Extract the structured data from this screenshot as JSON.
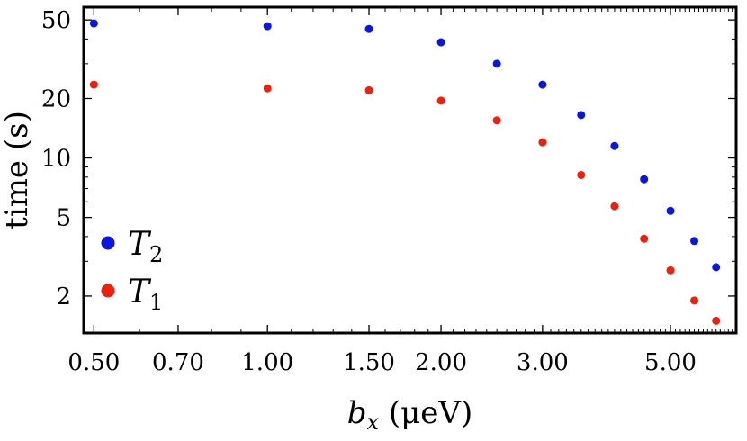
{
  "chart_data": {
    "type": "scatter",
    "xlabel": "b_x (μeV)",
    "ylabel": "time (s)",
    "xscale": "log",
    "yscale": "log",
    "xlim": [
      0.48,
      6.5
    ],
    "ylim": [
      1.3,
      58
    ],
    "x_tick_values": [
      0.5,
      0.7,
      1.0,
      1.5,
      2.0,
      3.0,
      5.0
    ],
    "x_tick_labels": [
      "0.50",
      "0.70",
      "1.00",
      "1.50",
      "2.00",
      "3.00",
      "5.00"
    ],
    "y_tick_values": [
      2,
      5,
      10,
      20,
      50
    ],
    "y_tick_labels": [
      "2",
      "5",
      "10",
      "20",
      "50"
    ],
    "legend_position": "bottom-left",
    "series": [
      {
        "name": "T_2",
        "label_main": "T",
        "label_sub": "2",
        "color": "#0a14e6",
        "points": [
          {
            "x": 0.5,
            "y": 48
          },
          {
            "x": 1.0,
            "y": 46.5
          },
          {
            "x": 1.5,
            "y": 45
          },
          {
            "x": 2.0,
            "y": 38.5
          },
          {
            "x": 2.5,
            "y": 30
          },
          {
            "x": 3.0,
            "y": 23.5
          },
          {
            "x": 3.5,
            "y": 16.5
          },
          {
            "x": 4.0,
            "y": 11.5
          },
          {
            "x": 4.5,
            "y": 7.8
          },
          {
            "x": 5.0,
            "y": 5.4
          },
          {
            "x": 5.5,
            "y": 3.8
          },
          {
            "x": 6.0,
            "y": 2.8
          }
        ]
      },
      {
        "name": "T_1",
        "label_main": "T",
        "label_sub": "1",
        "color": "#f01e0a",
        "points": [
          {
            "x": 0.5,
            "y": 23.5
          },
          {
            "x": 1.0,
            "y": 22.5
          },
          {
            "x": 1.5,
            "y": 22
          },
          {
            "x": 2.0,
            "y": 19.5
          },
          {
            "x": 2.5,
            "y": 15.5
          },
          {
            "x": 3.0,
            "y": 12
          },
          {
            "x": 3.5,
            "y": 8.2
          },
          {
            "x": 4.0,
            "y": 5.7
          },
          {
            "x": 4.5,
            "y": 3.9
          },
          {
            "x": 5.0,
            "y": 2.7
          },
          {
            "x": 5.5,
            "y": 1.9
          },
          {
            "x": 6.0,
            "y": 1.5
          }
        ]
      }
    ]
  }
}
